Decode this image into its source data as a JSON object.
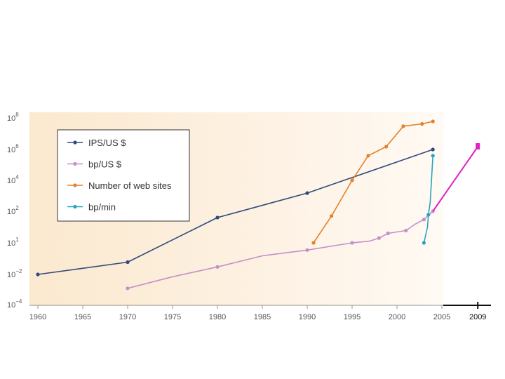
{
  "chart_data": {
    "type": "line",
    "y_scale": "log",
    "grid": false,
    "legend_position": "top-left",
    "x_ticks": [
      "1960",
      "1965",
      "1970",
      "1975",
      "1980",
      "1985",
      "1990",
      "1995",
      "2000",
      "2005"
    ],
    "x_extra_tick": "2009",
    "y_ticks": [
      {
        "base": "10",
        "exp": "8",
        "value": 100000000
      },
      {
        "base": "10",
        "exp": "6",
        "value": 1000000
      },
      {
        "base": "10",
        "exp": "4",
        "value": 10000
      },
      {
        "base": "10",
        "exp": "2",
        "value": 100
      },
      {
        "base": "10",
        "exp": "1",
        "value": 1
      },
      {
        "base": "10",
        "exp": "−2",
        "value": 0.01
      },
      {
        "base": "10",
        "exp": "−4",
        "value": 0.0001
      }
    ],
    "series": [
      {
        "name": "IPS/US $",
        "color": "#2f4b7c",
        "points": [
          [
            1960,
            0.01
          ],
          [
            1970,
            0.06
          ],
          [
            1980,
            40
          ],
          [
            1990,
            1500
          ],
          [
            2004,
            1000000
          ]
        ],
        "markers": [
          [
            1960,
            0.01
          ],
          [
            1970,
            0.06
          ],
          [
            1980,
            40
          ],
          [
            1990,
            1500
          ],
          [
            2004,
            1000000
          ]
        ]
      },
      {
        "name": "bp/US $",
        "color": "#c58fc9",
        "points": [
          [
            1970,
            0.0012
          ],
          [
            1975,
            0.007
          ],
          [
            1980,
            0.03
          ],
          [
            1985,
            0.15
          ],
          [
            1990,
            0.35
          ],
          [
            1995,
            1
          ],
          [
            1997,
            1.3
          ],
          [
            1998,
            2
          ],
          [
            1999,
            4
          ],
          [
            2001,
            6
          ],
          [
            2002,
            15
          ],
          [
            2003,
            30
          ],
          [
            2004,
            100
          ]
        ],
        "markers": [
          [
            1970,
            0.0012
          ],
          [
            1980,
            0.03
          ],
          [
            1990,
            0.35
          ],
          [
            1995,
            1
          ],
          [
            1998,
            2
          ],
          [
            1999,
            4
          ],
          [
            2001,
            6
          ],
          [
            2003,
            30
          ],
          [
            2004,
            100
          ]
        ]
      },
      {
        "name": "Number of web sites",
        "color": "#e0822f",
        "points": [
          [
            1990.7,
            1
          ],
          [
            1992.7,
            50
          ],
          [
            1995,
            10000
          ],
          [
            1996.8,
            400000
          ],
          [
            1998.8,
            1500000
          ],
          [
            2000.7,
            30000000
          ],
          [
            2002.8,
            42000000
          ],
          [
            2004,
            60000000
          ]
        ],
        "markers": [
          [
            1990.7,
            1
          ],
          [
            1992.7,
            50
          ],
          [
            1995,
            10000
          ],
          [
            1996.8,
            400000
          ],
          [
            1998.8,
            1500000
          ],
          [
            2000.7,
            30000000
          ],
          [
            2002.8,
            42000000
          ],
          [
            2004,
            60000000
          ]
        ]
      },
      {
        "name": "bp/min",
        "color": "#2aa3bf",
        "points": [
          [
            2003,
            1
          ],
          [
            2003.4,
            10
          ],
          [
            2003.5,
            60
          ],
          [
            2003.7,
            400
          ],
          [
            2004,
            400000
          ]
        ],
        "markers": [
          [
            2003,
            1
          ],
          [
            2003.5,
            60
          ],
          [
            2004,
            400000
          ]
        ]
      },
      {
        "name": "",
        "color": "#e020c8",
        "points": [
          [
            2004,
            100
          ],
          [
            2009,
            1500000
          ]
        ],
        "markers": []
      }
    ]
  }
}
